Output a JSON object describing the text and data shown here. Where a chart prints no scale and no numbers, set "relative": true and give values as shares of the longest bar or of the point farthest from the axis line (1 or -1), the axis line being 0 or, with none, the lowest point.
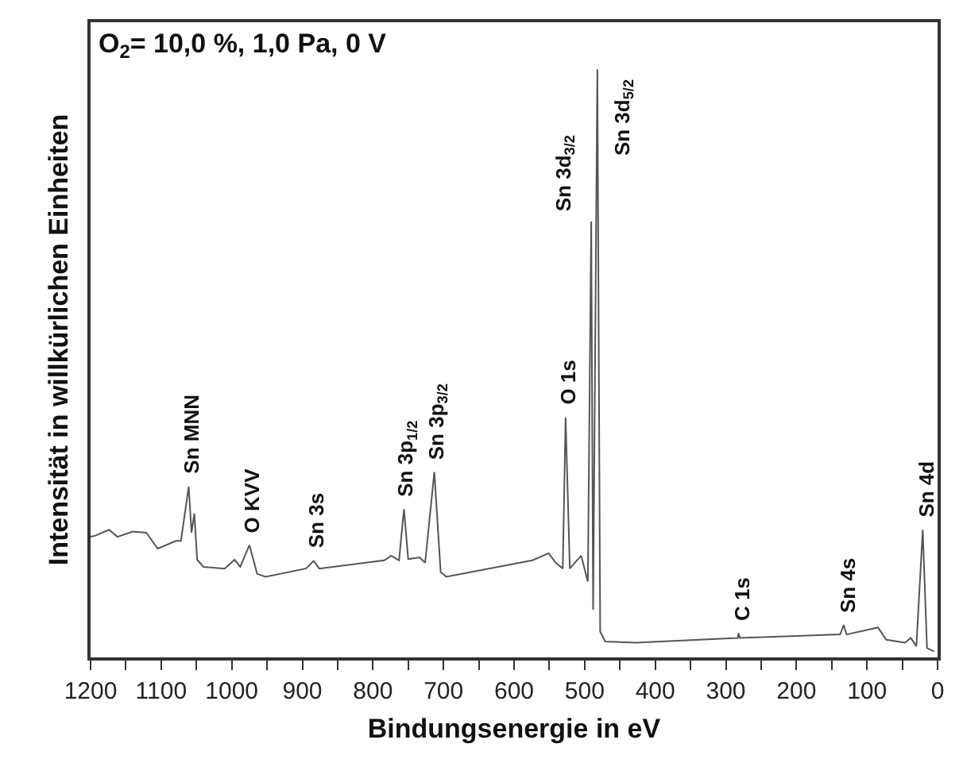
{
  "chart_data": {
    "type": "line",
    "relative": true,
    "xlabel": "Bindungsenergie in eV",
    "ylabel": "Intensität in willkürlichen Einheiten",
    "xlim": [
      1200,
      0
    ],
    "xticks": [
      1200,
      {
        "value": 1150,
        "label": null
      },
      1100,
      {
        "value": 1050,
        "label": null
      },
      1000,
      {
        "value": 950,
        "label": null
      },
      900,
      {
        "value": 850,
        "label": null
      },
      800,
      {
        "value": 750,
        "label": null
      },
      700,
      {
        "value": 650,
        "label": null
      },
      600,
      {
        "value": 550,
        "label": null
      },
      500,
      {
        "value": 450,
        "label": null
      },
      400,
      {
        "value": 350,
        "label": null
      },
      300,
      {
        "value": 250,
        "label": null
      },
      200,
      {
        "value": 150,
        "label": null
      },
      100,
      {
        "value": 50,
        "label": null
      },
      0
    ],
    "marker": "none",
    "line_style": "solid",
    "tick_labels": "x",
    "series": [
      {
        "color": "#555555",
        "x": [
          1200,
          1193,
          1174,
          1162,
          1140,
          1121,
          1105,
          1079,
          1072,
          1061,
          1057,
          1053,
          1049,
          1040,
          1010,
          996,
          988,
          975,
          964,
          952,
          895,
          884,
          876,
          784,
          774,
          763,
          756,
          750,
          734,
          726,
          713,
          704,
          696,
          574,
          551,
          541,
          531,
          527,
          521,
          505,
          495.5,
          490.7,
          488,
          482,
          478,
          471,
          428,
          283,
          282,
          280,
          138,
          133,
          129,
          91.5,
          84.5,
          72.7,
          46,
          38,
          30,
          21,
          15,
          5
        ],
        "values": [
          0.205,
          0.207,
          0.217,
          0.205,
          0.214,
          0.212,
          0.185,
          0.198,
          0.198,
          0.29,
          0.212,
          0.245,
          0.166,
          0.154,
          0.151,
          0.166,
          0.154,
          0.191,
          0.142,
          0.137,
          0.151,
          0.164,
          0.151,
          0.165,
          0.173,
          0.165,
          0.252,
          0.167,
          0.17,
          0.161,
          0.315,
          0.145,
          0.137,
          0.165,
          0.177,
          0.161,
          0.151,
          0.408,
          0.151,
          0.173,
          0.129,
          0.741,
          0.081,
          1,
          0.044,
          0.027,
          0.025,
          0.033,
          0.041,
          0.033,
          0.039,
          0.055,
          0.039,
          0.049,
          0.051,
          0.03,
          0.025,
          0.033,
          0.019,
          0.217,
          0.016,
          0.01
        ]
      }
    ],
    "annotations": [
      "O$_{2}$= 10,0 %, 1,0 Pa, 0 V",
      {
        "text": "Sn MNN",
        "x": 1061,
        "y": 0.29
      },
      {
        "text": "O KVV",
        "x": 975,
        "y": 0.191
      },
      {
        "text": "Sn 3s",
        "x": 884,
        "y": 0.164
      },
      {
        "text": "Sn 3p$_{1/2}$",
        "x": 756,
        "y": 0.252
      },
      {
        "text": "Sn 3p$_{3/2}$",
        "x": 713,
        "y": 0.315
      },
      {
        "text": "O 1s",
        "x": 527,
        "y": 0.408
      },
      {
        "text": "Sn 3d$_{3/2}$",
        "x": 490.7,
        "y": 0.741
      },
      {
        "text": "Sn 3d$_{5/2}$",
        "x": 482,
        "y": 1
      },
      {
        "text": "C 1s",
        "x": 282,
        "y": 0.041
      },
      {
        "text": "Sn 4s",
        "x": 133,
        "y": 0.055
      },
      {
        "text": "Sn 4d",
        "x": 21,
        "y": 0.217
      }
    ]
  }
}
